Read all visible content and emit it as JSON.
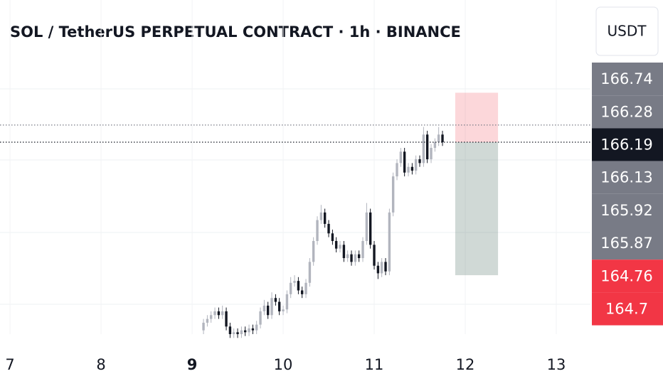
{
  "chart_data": {
    "type": "candlestick",
    "title": "SOL / TetherUS PERPETUAL CONTRACT · 1h · BINANCE",
    "currency": "USDT",
    "up_color": "#b2b5be",
    "down_color": "#131722",
    "grid": true,
    "xlim": [
      6.89,
      13.375
    ],
    "xticks": [
      7,
      8,
      9,
      10,
      11,
      12,
      13
    ],
    "ylim": [
      165.18,
      166.62
    ],
    "x": [
      9.125,
      9.167,
      9.208,
      9.25,
      9.292,
      9.333,
      9.375,
      9.417,
      9.458,
      9.5,
      9.542,
      9.583,
      9.625,
      9.667,
      9.708,
      9.75,
      9.792,
      9.833,
      9.875,
      9.917,
      9.958,
      10,
      10.042,
      10.083,
      10.125,
      10.167,
      10.208,
      10.25,
      10.292,
      10.333,
      10.375,
      10.417,
      10.458,
      10.5,
      10.542,
      10.583,
      10.625,
      10.667,
      10.708,
      10.75,
      10.792,
      10.833,
      10.875,
      10.917,
      10.958,
      11,
      11.042,
      11.083,
      11.125,
      11.167,
      11.208,
      11.25,
      11.292,
      11.333,
      11.375,
      11.417,
      11.458,
      11.5,
      11.542,
      11.583,
      11.625,
      11.667,
      11.708,
      11.75
    ],
    "open": [
      165.2,
      165.24,
      165.26,
      165.28,
      165.3,
      165.28,
      165.3,
      165.22,
      165.18,
      165.19,
      165.18,
      165.2,
      165.19,
      165.21,
      165.2,
      165.23,
      165.3,
      165.33,
      165.28,
      165.37,
      165.35,
      165.3,
      165.31,
      165.39,
      165.45,
      165.46,
      165.41,
      165.39,
      165.45,
      165.56,
      165.67,
      165.78,
      165.82,
      165.76,
      165.71,
      165.67,
      165.63,
      165.65,
      165.58,
      165.6,
      165.56,
      165.6,
      165.58,
      165.67,
      165.82,
      165.65,
      165.54,
      165.5,
      165.56,
      165.51,
      165.82,
      166.01,
      166.08,
      166.14,
      166.03,
      166.06,
      166.04,
      166.1,
      166.08,
      166.23,
      166.1,
      166.16,
      166.19,
      166.23
    ],
    "high": [
      165.26,
      165.28,
      165.3,
      165.32,
      165.32,
      165.33,
      165.32,
      165.24,
      165.21,
      165.21,
      165.22,
      165.22,
      165.23,
      165.23,
      165.25,
      165.32,
      165.36,
      165.35,
      165.4,
      165.39,
      165.37,
      165.33,
      165.41,
      165.48,
      165.49,
      165.48,
      165.43,
      165.47,
      165.58,
      165.69,
      165.8,
      165.86,
      165.84,
      165.78,
      165.73,
      165.69,
      165.67,
      165.67,
      165.62,
      165.62,
      165.62,
      165.62,
      165.69,
      165.87,
      165.84,
      165.67,
      165.56,
      165.58,
      165.58,
      165.84,
      166.03,
      166.1,
      166.16,
      166.16,
      166.08,
      166.08,
      166.12,
      166.12,
      166.27,
      166.25,
      166.18,
      166.21,
      166.27,
      166.25
    ],
    "low": [
      165.18,
      165.22,
      165.24,
      165.26,
      165.26,
      165.26,
      165.2,
      165.16,
      165.16,
      165.16,
      165.16,
      165.17,
      165.17,
      165.18,
      165.18,
      165.21,
      165.28,
      165.26,
      165.26,
      165.33,
      165.28,
      165.28,
      165.29,
      165.37,
      165.43,
      165.39,
      165.37,
      165.37,
      165.43,
      165.54,
      165.65,
      165.76,
      165.74,
      165.69,
      165.65,
      165.61,
      165.61,
      165.56,
      165.56,
      165.54,
      165.54,
      165.56,
      165.56,
      165.65,
      165.63,
      165.52,
      165.47,
      165.48,
      165.49,
      165.49,
      165.8,
      165.99,
      166.06,
      166.01,
      166.01,
      166.02,
      166.02,
      166.06,
      166.06,
      166.08,
      166.08,
      166.14,
      166.17,
      166.17
    ],
    "close": [
      165.24,
      165.26,
      165.28,
      165.3,
      165.28,
      165.3,
      165.22,
      165.18,
      165.19,
      165.18,
      165.2,
      165.19,
      165.21,
      165.2,
      165.23,
      165.3,
      165.33,
      165.28,
      165.37,
      165.35,
      165.3,
      165.31,
      165.39,
      165.45,
      165.46,
      165.41,
      165.39,
      165.45,
      165.56,
      165.67,
      165.78,
      165.82,
      165.76,
      165.71,
      165.67,
      165.63,
      165.65,
      165.58,
      165.6,
      165.56,
      165.6,
      165.58,
      165.67,
      165.82,
      165.65,
      165.54,
      165.5,
      165.56,
      165.51,
      165.82,
      166.01,
      166.08,
      166.14,
      166.03,
      166.06,
      166.04,
      166.1,
      166.08,
      166.23,
      166.1,
      166.16,
      166.19,
      166.23,
      166.19
    ],
    "price_tags": [
      {
        "value": 166.74,
        "color": "#787b86"
      },
      {
        "value": 166.28,
        "color": "#787b86"
      },
      {
        "value": 166.19,
        "color": "#131722"
      },
      {
        "value": 166.13,
        "color": "#787b86"
      },
      {
        "value": 165.92,
        "color": "#787b86"
      },
      {
        "value": 165.87,
        "color": "#787b86"
      },
      {
        "value": 164.76,
        "color": "#f23645"
      },
      {
        "value": 164.7,
        "color": "#f23645"
      }
    ],
    "position": {
      "entry": 166.19,
      "stop": 166.45,
      "target": 165.49,
      "start": 11.89,
      "end": 12.36
    }
  }
}
